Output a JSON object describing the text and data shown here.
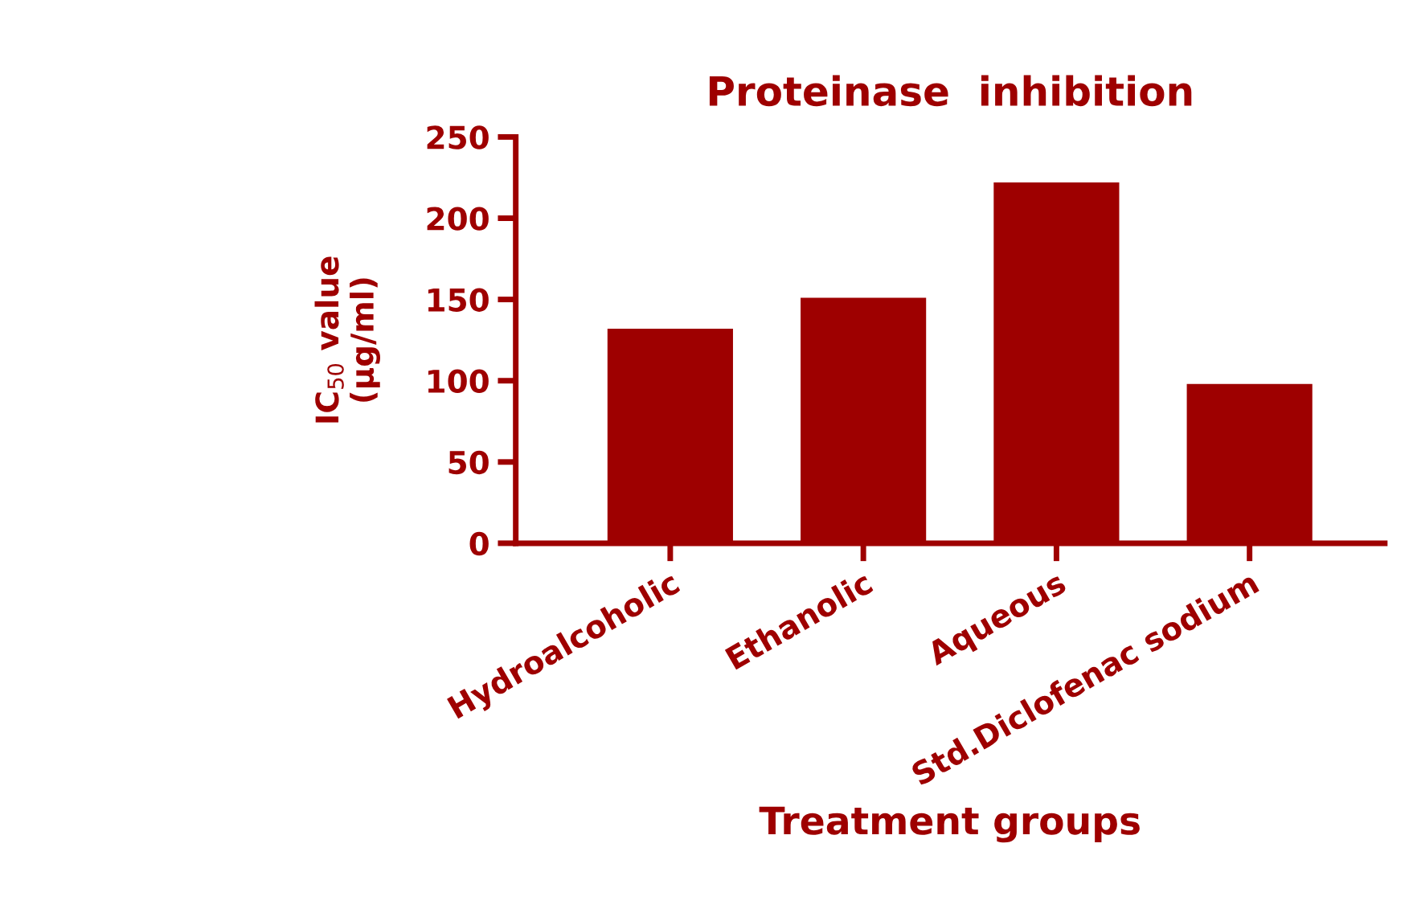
{
  "chart_data": {
    "type": "bar",
    "title": "Proteinase  inhibition",
    "xlabel": "Treatment groups",
    "ylabel": "IC$_{50}$ value\n(µg/ml)",
    "categories": [
      "Hydroalcoholic",
      "Ethanolic",
      "Aqueous",
      "Std.Diclofenac sodium"
    ],
    "values": [
      132,
      151,
      222,
      98
    ],
    "color": "#9e0000",
    "ylim": [
      0,
      250
    ],
    "yticks": [
      0,
      50,
      100,
      150,
      200,
      250
    ],
    "grid": false,
    "legend": false
  }
}
